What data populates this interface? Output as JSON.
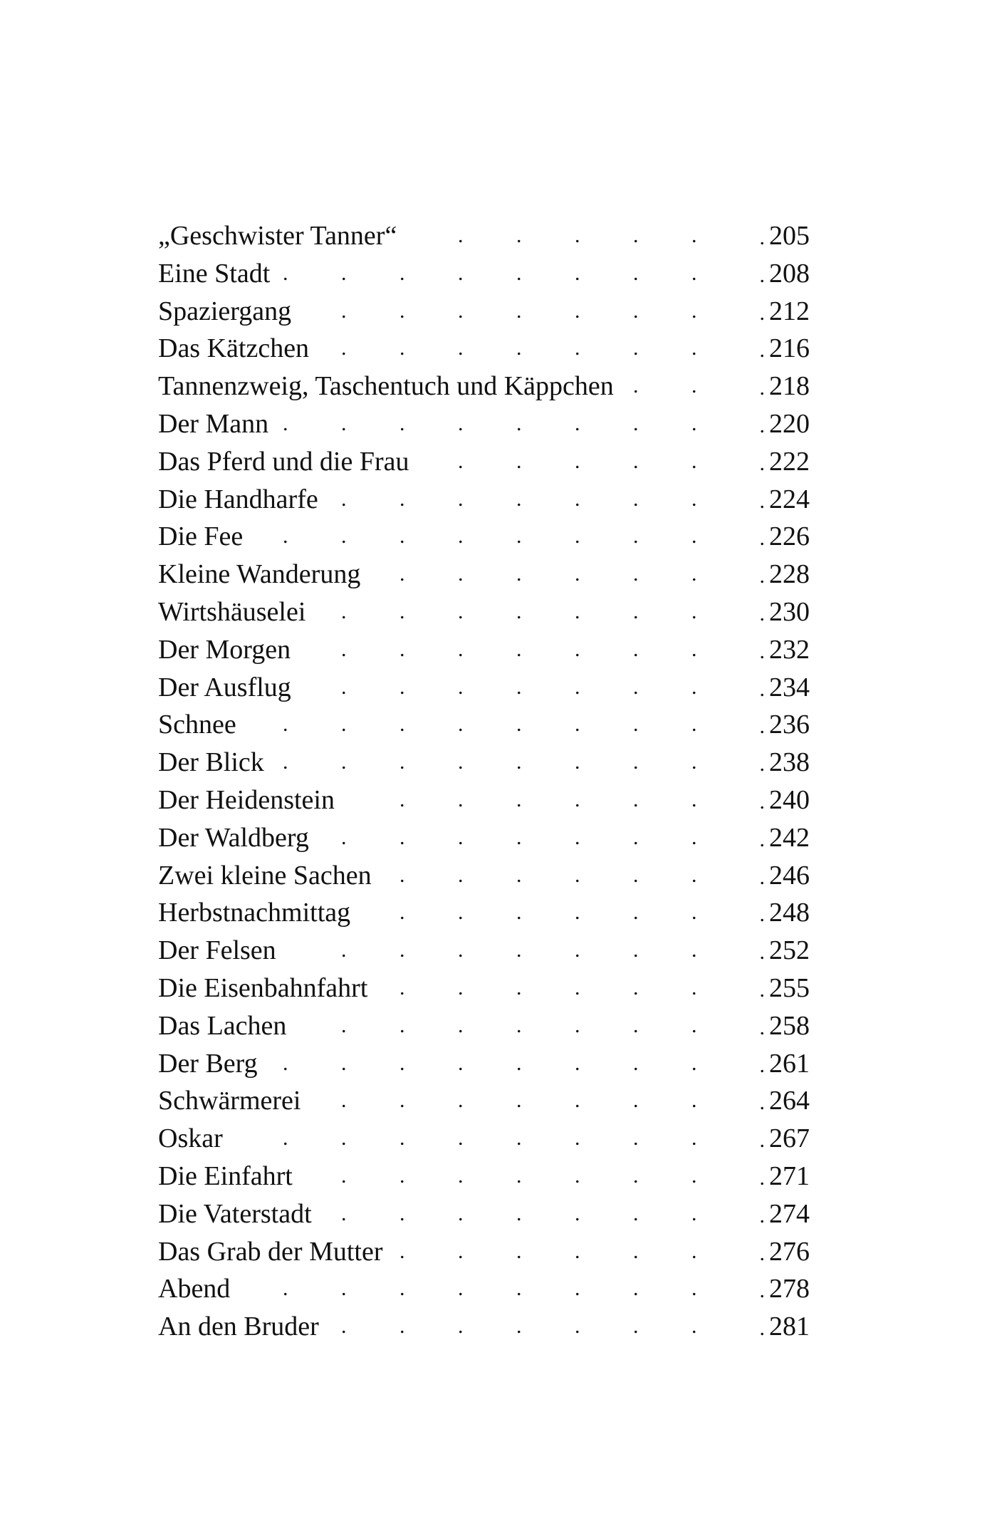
{
  "entries": [
    {
      "title": "„Geschwister Tanner“",
      "page": "205"
    },
    {
      "title": "Eine Stadt",
      "page": "208"
    },
    {
      "title": "Spaziergang",
      "page": "212"
    },
    {
      "title": "Das Kätzchen",
      "page": "216"
    },
    {
      "title": "Tannenzweig, Taschentuch und Käppchen",
      "page": "218"
    },
    {
      "title": "Der Mann",
      "page": "220"
    },
    {
      "title": "Das Pferd und die Frau",
      "page": "222"
    },
    {
      "title": "Die Handharfe",
      "page": "224"
    },
    {
      "title": "Die Fee",
      "page": "226"
    },
    {
      "title": "Kleine Wanderung",
      "page": "228"
    },
    {
      "title": "Wirtshäuselei",
      "page": "230"
    },
    {
      "title": "Der Morgen",
      "page": "232"
    },
    {
      "title": "Der Ausflug",
      "page": "234"
    },
    {
      "title": "Schnee",
      "page": "236"
    },
    {
      "title": "Der Blick",
      "page": "238"
    },
    {
      "title": "Der Heidenstein",
      "page": "240"
    },
    {
      "title": "Der Waldberg",
      "page": "242"
    },
    {
      "title": "Zwei kleine Sachen",
      "page": "246"
    },
    {
      "title": "Herbstnachmittag",
      "page": "248"
    },
    {
      "title": "Der Felsen",
      "page": "252"
    },
    {
      "title": "Die Eisenbahnfahrt",
      "page": "255"
    },
    {
      "title": "Das Lachen",
      "page": "258"
    },
    {
      "title": "Der Berg",
      "page": "261"
    },
    {
      "title": "Schwärmerei",
      "page": "264"
    },
    {
      "title": "Oskar",
      "page": "267"
    },
    {
      "title": "Die Einfahrt",
      "page": "271"
    },
    {
      "title": "Die Vaterstadt",
      "page": "274"
    },
    {
      "title": "Das Grab der Mutter",
      "page": "276"
    },
    {
      "title": "Abend",
      "page": "278"
    },
    {
      "title": "An den Bruder",
      "page": "281"
    }
  ]
}
